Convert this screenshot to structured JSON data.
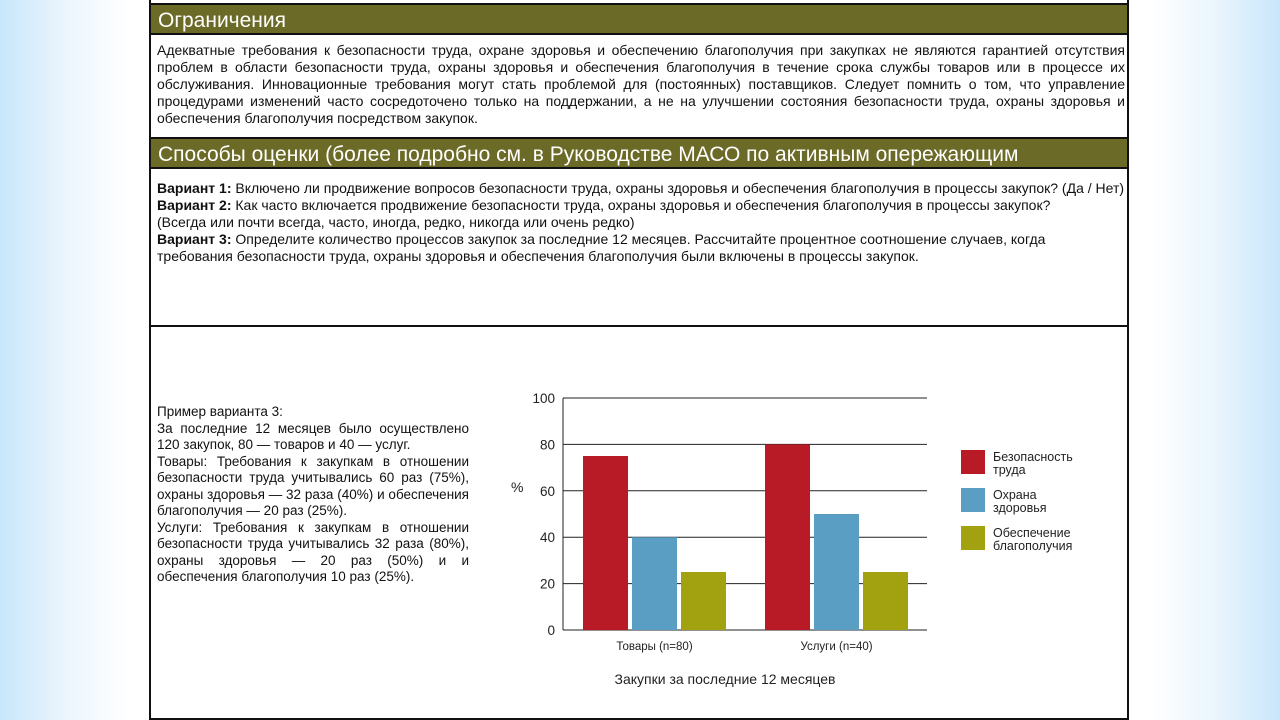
{
  "limits": {
    "title": "Ограничения",
    "body": "Адекватные требования к безопасности труда, охране здоровья и обеспечению благополучия при закупках не являются гарантией отсутствия проблем в области безопасности труда, охраны здоровья и обеспечения благополучия в течение срока службы товаров или в процессе их обслуживания. Инновационные требования могут стать проблемой для (постоянных) поставщиков. Следует помнить о том, что управление процедурами изменений часто сосредоточено только на поддержании, а не на улучшении состояния безопасности труда, охраны здоровья и обеспечения благополучия посредством закупок."
  },
  "methods": {
    "title": "Способы оценки (более подробно см. в Руководстве МАСО по активным опережающим индикаторам)",
    "v1_label": "Вариант 1:",
    "v1_text": " Включено ли продвижение вопросов безопасности труда, охраны здоровья и обеспечения благополучия в процессы закупок? (Да / Нет)",
    "v2_label": "Вариант 2:",
    "v2_text": " Как часто включается продвижение безопасности труда, охраны здоровья и обеспечения благополучия в процессы закупок?",
    "v2_options": "(Всегда или почти всегда, часто, иногда, редко, никогда или очень редко)",
    "v3_label": "Вариант 3:",
    "v3_text": " Определите количество процессов закупок за последние 12 месяцев. Рассчитайте процентное соотношение случаев, когда требования безопасности труда, охраны здоровья и обеспечения благополучия были включены в процессы закупок."
  },
  "example": {
    "title": "Пример варианта 3:",
    "p1": "За последние 12 месяцев было осуществлено 120 закупок, 80 — товаров и 40 — услуг.",
    "p2": "Товары: Требования к закупкам в отношении безопасности труда учитывались 60 раз (75%), охраны здоровья — 32 раза (40%) и обеспечения благополучия — 20 раз (25%).",
    "p3": "Услуги: Требования к закупкам в отношении безопасности труда учитывались 32 раза (80%), охраны здоровья — 20 раз (50%) и и обеспечения благополучия 10 раз (25%)."
  },
  "colors": {
    "header_bg": "#6b6a26",
    "safety": "#b81b25",
    "health": "#5a9ec3",
    "wellbeing": "#a2a211"
  },
  "chart_data": {
    "type": "bar",
    "categories": [
      "Товары (n=80)",
      "Услуги (n=40)"
    ],
    "series": [
      {
        "name": "Безопасность труда",
        "values": [
          75,
          80
        ]
      },
      {
        "name": "Охрана здоровья",
        "values": [
          40,
          50
        ]
      },
      {
        "name": "Обеспечение благополучия",
        "values": [
          25,
          25
        ]
      }
    ],
    "title": "",
    "xlabel": "Закупки за последние 12 месяцев",
    "ylabel": "%",
    "ylim": [
      0,
      100
    ],
    "yticks": [
      0,
      20,
      40,
      60,
      80,
      100
    ],
    "legend": "right"
  }
}
